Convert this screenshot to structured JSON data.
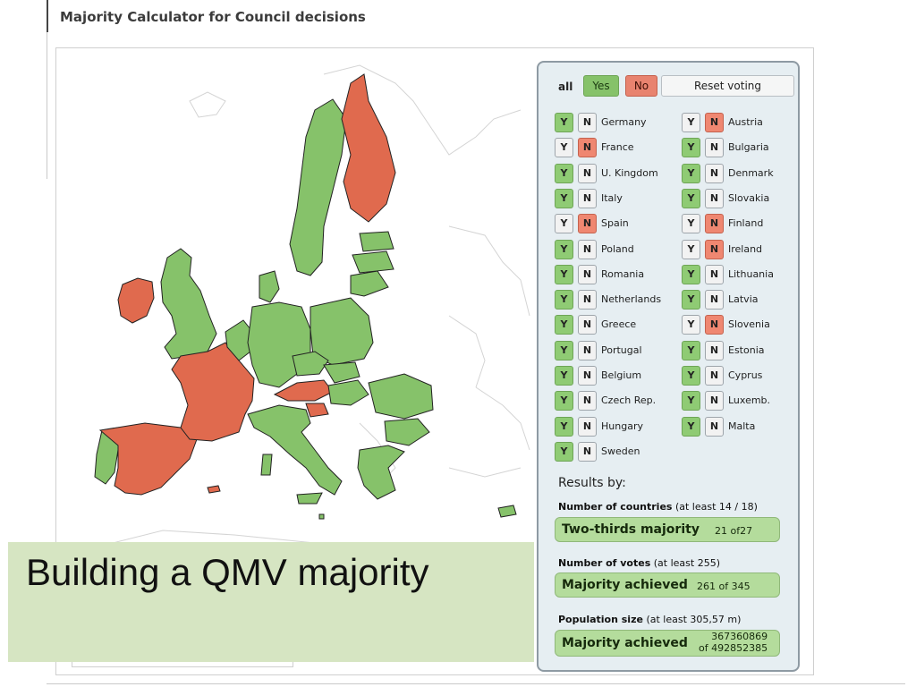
{
  "header": {
    "title": "Majority Calculator for Council decisions"
  },
  "controls": {
    "all_label": "all",
    "yes_label": "Yes",
    "no_label": "No",
    "reset_label": "Reset voting",
    "y": "Y",
    "n": "N"
  },
  "colors": {
    "yes": "#86c26a",
    "no": "#e06a4e",
    "panel_bg": "#e6eef2",
    "result_bg": "#b4dc9c"
  },
  "countries_left": [
    {
      "name": "Germany",
      "vote": "Y"
    },
    {
      "name": "France",
      "vote": "N"
    },
    {
      "name": "U. Kingdom",
      "vote": "Y"
    },
    {
      "name": "Italy",
      "vote": "Y"
    },
    {
      "name": "Spain",
      "vote": "N"
    },
    {
      "name": "Poland",
      "vote": "Y"
    },
    {
      "name": "Romania",
      "vote": "Y"
    },
    {
      "name": "Netherlands",
      "vote": "Y"
    },
    {
      "name": "Greece",
      "vote": "Y"
    },
    {
      "name": "Portugal",
      "vote": "Y"
    },
    {
      "name": "Belgium",
      "vote": "Y"
    },
    {
      "name": "Czech Rep.",
      "vote": "Y"
    },
    {
      "name": "Hungary",
      "vote": "Y"
    },
    {
      "name": "Sweden",
      "vote": "Y"
    }
  ],
  "countries_right": [
    {
      "name": "Austria",
      "vote": "N"
    },
    {
      "name": "Bulgaria",
      "vote": "Y"
    },
    {
      "name": "Denmark",
      "vote": "Y"
    },
    {
      "name": "Slovakia",
      "vote": "Y"
    },
    {
      "name": "Finland",
      "vote": "N"
    },
    {
      "name": "Ireland",
      "vote": "N"
    },
    {
      "name": "Lithuania",
      "vote": "Y"
    },
    {
      "name": "Latvia",
      "vote": "Y"
    },
    {
      "name": "Slovenia",
      "vote": "N"
    },
    {
      "name": "Estonia",
      "vote": "Y"
    },
    {
      "name": "Cyprus",
      "vote": "Y"
    },
    {
      "name": "Luxemb.",
      "vote": "Y"
    },
    {
      "name": "Malta",
      "vote": "Y"
    }
  ],
  "results": {
    "title": "Results by:",
    "countries": {
      "heading": "Number of countries",
      "threshold": "(at least 14 / 18)",
      "status": "Two-thirds majority",
      "value": "21",
      "of": "of",
      "total": "27"
    },
    "votes": {
      "heading": "Number of votes",
      "threshold": "(at least 255)",
      "status": "Majority achieved",
      "value": "261",
      "of": "of",
      "total": "345"
    },
    "population": {
      "heading": "Population size",
      "threshold": "(at least 305,57 m)",
      "status": "Majority achieved",
      "value": "367360869",
      "of": "of",
      "total": "492852385"
    }
  },
  "caption": {
    "text": "Building a QMV majority"
  }
}
